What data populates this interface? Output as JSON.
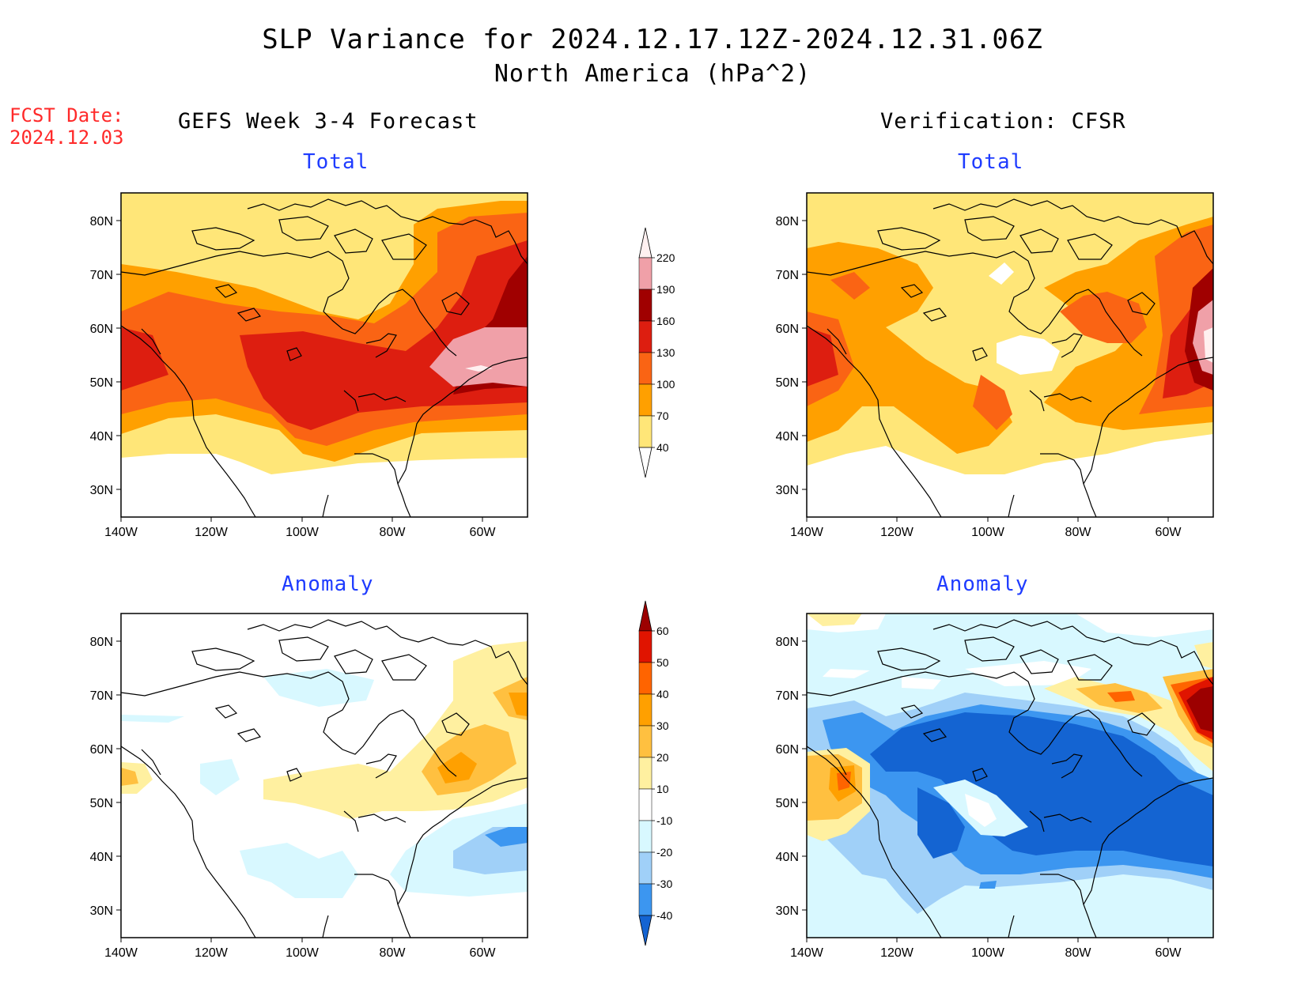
{
  "header": {
    "title_line1": "SLP Variance for 2024.12.17.12Z-2024.12.31.06Z",
    "title_line2": "North America (hPa^2)",
    "fcst_label": "FCST Date:",
    "fcst_date": "2024.12.03"
  },
  "columns": {
    "left_title": "GEFS Week 3-4 Forecast",
    "right_title": "Verification: CFSR"
  },
  "panels": {
    "total_label": "Total",
    "anomaly_label": "Anomaly"
  },
  "axes": {
    "lat_labels": [
      "80N",
      "70N",
      "60N",
      "50N",
      "40N",
      "30N"
    ],
    "lon_labels": [
      "140W",
      "120W",
      "100W",
      "80W",
      "60W"
    ]
  },
  "colorbars": {
    "total": {
      "levels": [
        "220",
        "190",
        "160",
        "130",
        "100",
        "70",
        "40"
      ],
      "colors": [
        "#fff0f0",
        "#f0a0a8",
        "#a00000",
        "#dd1e10",
        "#fa6414",
        "#ffa000",
        "#ffe678",
        "#ffffff"
      ]
    },
    "anomaly": {
      "levels": [
        "60",
        "50",
        "40",
        "30",
        "20",
        "10",
        "-10",
        "-20",
        "-30",
        "-40"
      ],
      "colors": [
        "#9c0000",
        "#e01400",
        "#ff6400",
        "#ffa000",
        "#ffc040",
        "#fff0a0",
        "#ffffff",
        "#d8f8ff",
        "#a0d0f8",
        "#3c96f0",
        "#1464d2"
      ]
    }
  }
}
